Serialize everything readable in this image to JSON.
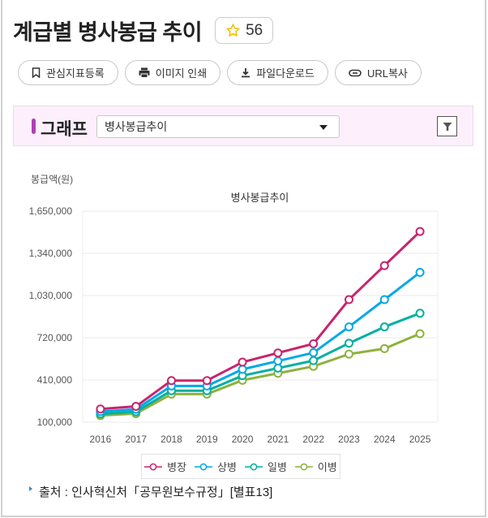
{
  "header": {
    "title": "계급별 병사봉급 추이",
    "favorite_count": "56"
  },
  "actions": [
    {
      "label": "관심지표등록",
      "icon": "bookmark-icon"
    },
    {
      "label": "이미지 인쇄",
      "icon": "printer-icon"
    },
    {
      "label": "파일다운로드",
      "icon": "download-icon"
    },
    {
      "label": "URL복사",
      "icon": "link-icon"
    }
  ],
  "graph_bar": {
    "label": "그래프",
    "selected_option": "병사봉급추이",
    "filter_icon": "filter-icon"
  },
  "colors": {
    "병장": "#C8246C",
    "상병": "#00A9E8",
    "일병": "#00B0A0",
    "이병": "#8DB23E",
    "accent": "#B03FB8"
  },
  "legend": [
    "병장",
    "상병",
    "일병",
    "이병"
  ],
  "source": "출처 : 인사혁신처「공무원보수규정」[별표13]",
  "chart_data": {
    "type": "line",
    "title": "병사봉급추이",
    "xlabel": "",
    "ylabel": "봉급액(원)",
    "categories": [
      "2016",
      "2017",
      "2018",
      "2019",
      "2020",
      "2021",
      "2022",
      "2023",
      "2024",
      "2025"
    ],
    "yticks": [
      "1,650,000",
      "1,340,000",
      "1,030,000",
      "720,000",
      "410,000",
      "100,000"
    ],
    "ylim": [
      100000,
      1650000
    ],
    "grid": true,
    "legend_position": "bottom",
    "series": [
      {
        "name": "병장",
        "values": [
          197000,
          216000,
          405700,
          405700,
          540900,
          608500,
          676100,
          1000000,
          1250000,
          1500000
        ]
      },
      {
        "name": "상병",
        "values": [
          178000,
          195000,
          366200,
          366200,
          488200,
          549200,
          610200,
          800000,
          1000000,
          1200000
        ]
      },
      {
        "name": "일병",
        "values": [
          161000,
          176400,
          331300,
          331300,
          441700,
          496900,
          552100,
          680000,
          800000,
          900000
        ]
      },
      {
        "name": "이병",
        "values": [
          148800,
          163000,
          306100,
          306100,
          408100,
          459100,
          510100,
          600000,
          640000,
          750000
        ]
      }
    ]
  }
}
